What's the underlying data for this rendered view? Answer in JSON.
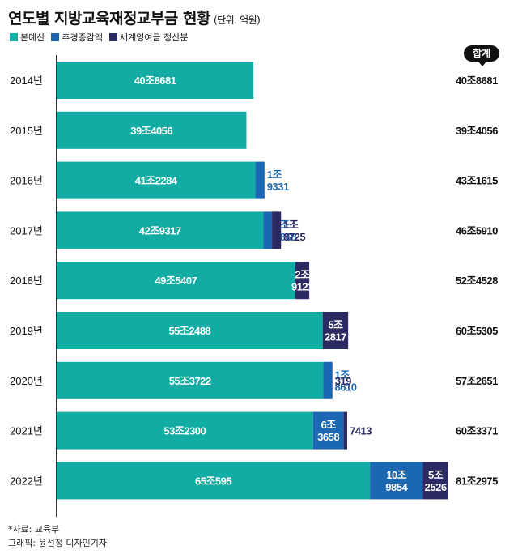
{
  "title": "연도별 지방교육재정교부금 현황",
  "unit": "(단위: 억원)",
  "total_label": "합계",
  "source": "*자료: 교육부",
  "credit": "그래픽: 윤선정 디자인기자",
  "colors": {
    "base": "#11aca3",
    "supplementary": "#1b67b2",
    "surplus": "#2c2a62",
    "axis": "#333333"
  },
  "chart_data": {
    "type": "bar",
    "orientation": "horizontal",
    "stacked": true,
    "categories": [
      "2014년",
      "2015년",
      "2016년",
      "2017년",
      "2018년",
      "2019년",
      "2020년",
      "2021년",
      "2022년"
    ],
    "legend_position": "top-left",
    "series": [
      {
        "name": "본예산",
        "values": [
          408681,
          394056,
          412284,
          429317,
          495407,
          552488,
          553722,
          532300,
          650595
        ],
        "labels": [
          "40조8681",
          "39조4056",
          "41조2284",
          "42조9317",
          "49조5407",
          "55조2488",
          "55조3722",
          "53조2300",
          "65조595"
        ]
      },
      {
        "name": "추경증감액",
        "values": [
          0,
          0,
          19331,
          17868,
          0,
          0,
          18610,
          63658,
          109854
        ],
        "labels": [
          "",
          "",
          "1조\n9331",
          "1조\n7868",
          "",
          "",
          "1조\n8610",
          "6조\n3658",
          "10조\n9854"
        ]
      },
      {
        "name": "세계잉여금 정산분",
        "values": [
          0,
          0,
          0,
          18725,
          29121,
          52817,
          319,
          7413,
          52526
        ],
        "labels": [
          "",
          "",
          "",
          "1조\n8725",
          "2조\n9121",
          "5조\n2817",
          "319",
          "7413",
          "5조\n2526"
        ]
      }
    ],
    "totals": [
      408681,
      394056,
      431615,
      465910,
      524528,
      605305,
      572651,
      603371,
      812975
    ],
    "total_labels": [
      "40조8681",
      "39조4056",
      "43조1615",
      "46조5910",
      "52조4528",
      "60조5305",
      "57조2651",
      "60조3371",
      "81조2975"
    ]
  }
}
